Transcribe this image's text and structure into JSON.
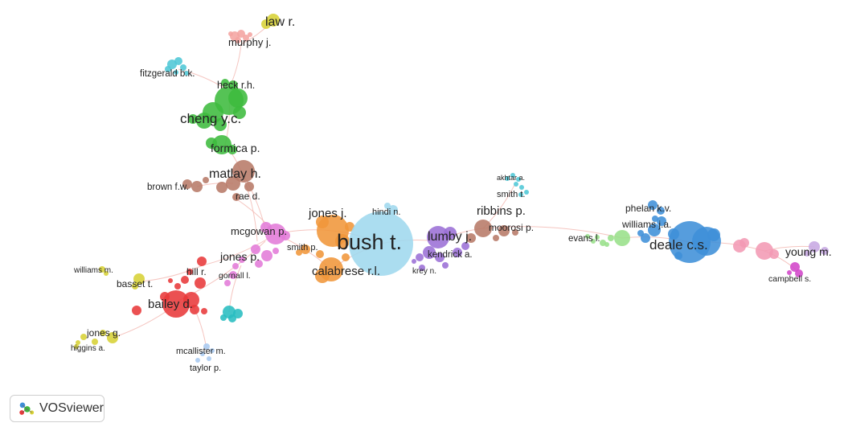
{
  "app": {
    "name": "VOSviewer",
    "logo_icon": "vosviewer-logo-icon"
  },
  "colors": {
    "red": "#e8393a",
    "green": "#3dbb3d",
    "blue": "#3f8fd8",
    "yellow": "#d7d136",
    "purple": "#9b6fd6",
    "cyan": "#4fc7d6",
    "orange": "#f0963a",
    "brown": "#b77a68",
    "pink": "#e27bd8",
    "light_pink": "#f29ab4",
    "light_blue": "#9fd8ee",
    "light_green": "#98e08a",
    "peach": "#f4a4a0",
    "magenta": "#d145c9",
    "lavender": "#c7a8e3",
    "sky": "#a9c9f0",
    "lime": "#c7d86a",
    "teal": "#28bdc0"
  },
  "nodes": [
    {
      "label": "law r.",
      "color": "yellow"
    },
    {
      "label": "murphy j.",
      "color": "peach"
    },
    {
      "label": "fitzgerald b.k.",
      "color": "cyan"
    },
    {
      "label": "heck r.h.",
      "color": "green"
    },
    {
      "label": "cheng y.c.",
      "color": "green"
    },
    {
      "label": "formica p.",
      "color": "green"
    },
    {
      "label": "matlay h.",
      "color": "brown"
    },
    {
      "label": "brown f.w.",
      "color": "brown"
    },
    {
      "label": "rae d.",
      "color": "brown"
    },
    {
      "label": "jones j.",
      "color": "orange"
    },
    {
      "label": "hindi n.",
      "color": "light_blue"
    },
    {
      "label": "mcgowan p.",
      "color": "pink"
    },
    {
      "label": "bush t.",
      "color": "light_blue"
    },
    {
      "label": "smith p.",
      "color": "orange"
    },
    {
      "label": "jones p.",
      "color": "pink"
    },
    {
      "label": "calabrese r.l.",
      "color": "orange"
    },
    {
      "label": "gornall l.",
      "color": "pink"
    },
    {
      "label": "hill r.",
      "color": "red"
    },
    {
      "label": "williams m.",
      "color": "yellow"
    },
    {
      "label": "basset t.",
      "color": "yellow"
    },
    {
      "label": "bailey d.",
      "color": "red"
    },
    {
      "label": "jones g.",
      "color": "yellow"
    },
    {
      "label": "higgins a.",
      "color": "yellow"
    },
    {
      "label": "mcallister m.",
      "color": "sky"
    },
    {
      "label": "taylor p.",
      "color": "sky"
    },
    {
      "label": "lumby j.",
      "color": "purple"
    },
    {
      "label": "kendrick a.",
      "color": "purple"
    },
    {
      "label": "krey n.",
      "color": "purple"
    },
    {
      "label": "akhtar a.",
      "color": "cyan"
    },
    {
      "label": "smith t.",
      "color": "cyan"
    },
    {
      "label": "ribbins p.",
      "color": "brown"
    },
    {
      "label": "moorosi p.",
      "color": "brown"
    },
    {
      "label": "evans l.",
      "color": "light_green"
    },
    {
      "label": "phelan k.v.",
      "color": "blue"
    },
    {
      "label": "williams j.a.",
      "color": "blue"
    },
    {
      "label": "deale c.s.",
      "color": "blue"
    },
    {
      "label": "young m.",
      "color": "lavender"
    },
    {
      "label": "campbell s.",
      "color": "magenta"
    }
  ]
}
